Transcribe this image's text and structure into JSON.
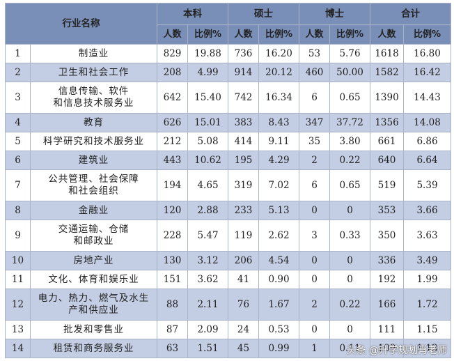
{
  "header": {
    "industry_col": "行业名称",
    "groups": [
      "本科",
      "硕士",
      "博士",
      "合计"
    ],
    "sub": [
      "人数",
      "比例%"
    ]
  },
  "rows": [
    {
      "no": "1",
      "name": [
        "制造业"
      ],
      "vals": [
        "829",
        "19.88",
        "736",
        "16.20",
        "53",
        "5.76",
        "1618",
        "16.80"
      ],
      "h": 27
    },
    {
      "no": "2",
      "name": [
        "卫生和社会工作"
      ],
      "vals": [
        "208",
        "4.99",
        "914",
        "20.12",
        "460",
        "50.00",
        "1582",
        "16.42"
      ],
      "h": 27
    },
    {
      "no": "3",
      "name": [
        "信息传输、软件",
        "和信息技术服务业"
      ],
      "vals": [
        "642",
        "15.40",
        "742",
        "16.34",
        "6",
        "0.65",
        "1390",
        "14.43"
      ],
      "h": 45
    },
    {
      "no": "4",
      "name": [
        "教育"
      ],
      "vals": [
        "626",
        "15.01",
        "383",
        "8.43",
        "347",
        "37.72",
        "1356",
        "14.08"
      ],
      "h": 27
    },
    {
      "no": "5",
      "name": [
        "科学研究和技术服务业"
      ],
      "vals": [
        "212",
        "5.08",
        "414",
        "9.11",
        "35",
        "3.80",
        "661",
        "6.86"
      ],
      "h": 27
    },
    {
      "no": "6",
      "name": [
        "建筑业"
      ],
      "vals": [
        "443",
        "10.62",
        "195",
        "4.29",
        "2",
        "0.22",
        "640",
        "6.64"
      ],
      "h": 27
    },
    {
      "no": "7",
      "name": [
        "公共管理、社会保障",
        "和社会组织"
      ],
      "vals": [
        "194",
        "4.65",
        "319",
        "7.02",
        "6",
        "0.65",
        "519",
        "5.39"
      ],
      "h": 45
    },
    {
      "no": "8",
      "name": [
        "金融业"
      ],
      "vals": [
        "120",
        "2.88",
        "233",
        "5.13",
        "0",
        "0",
        "353",
        "3.66"
      ],
      "h": 27
    },
    {
      "no": "9",
      "name": [
        "交通运输、仓储",
        "和邮政业"
      ],
      "vals": [
        "228",
        "5.47",
        "119",
        "2.62",
        "3",
        "0.33",
        "350",
        "3.63"
      ],
      "h": 45
    },
    {
      "no": "10",
      "name": [
        "房地产业"
      ],
      "vals": [
        "130",
        "3.12",
        "206",
        "4.54",
        "0",
        "0",
        "336",
        "3.49"
      ],
      "h": 27
    },
    {
      "no": "11",
      "name": [
        "文化、体育和娱乐业"
      ],
      "vals": [
        "151",
        "3.62",
        "41",
        "0.90",
        "0",
        "0",
        "192",
        "1.99"
      ],
      "h": 27
    },
    {
      "no": "12",
      "name": [
        "电力、热力、燃气及水生",
        "产和供应业"
      ],
      "vals": [
        "88",
        "2.11",
        "76",
        "1.67",
        "2",
        "0.22",
        "166",
        "1.72"
      ],
      "h": 45
    },
    {
      "no": "13",
      "name": [
        "批发和零售业"
      ],
      "vals": [
        "87",
        "2.09",
        "24",
        "0.53",
        "0",
        "0",
        "111",
        "1.15"
      ],
      "h": 27
    },
    {
      "no": "14",
      "name": [
        "租赁和商务服务业"
      ],
      "vals": [
        "63",
        "1.51",
        "45",
        "0.99",
        "1",
        "0.11",
        "109",
        "1.13"
      ],
      "h": 27
    }
  ],
  "watermark": "头条 @升学规划肖老师"
}
